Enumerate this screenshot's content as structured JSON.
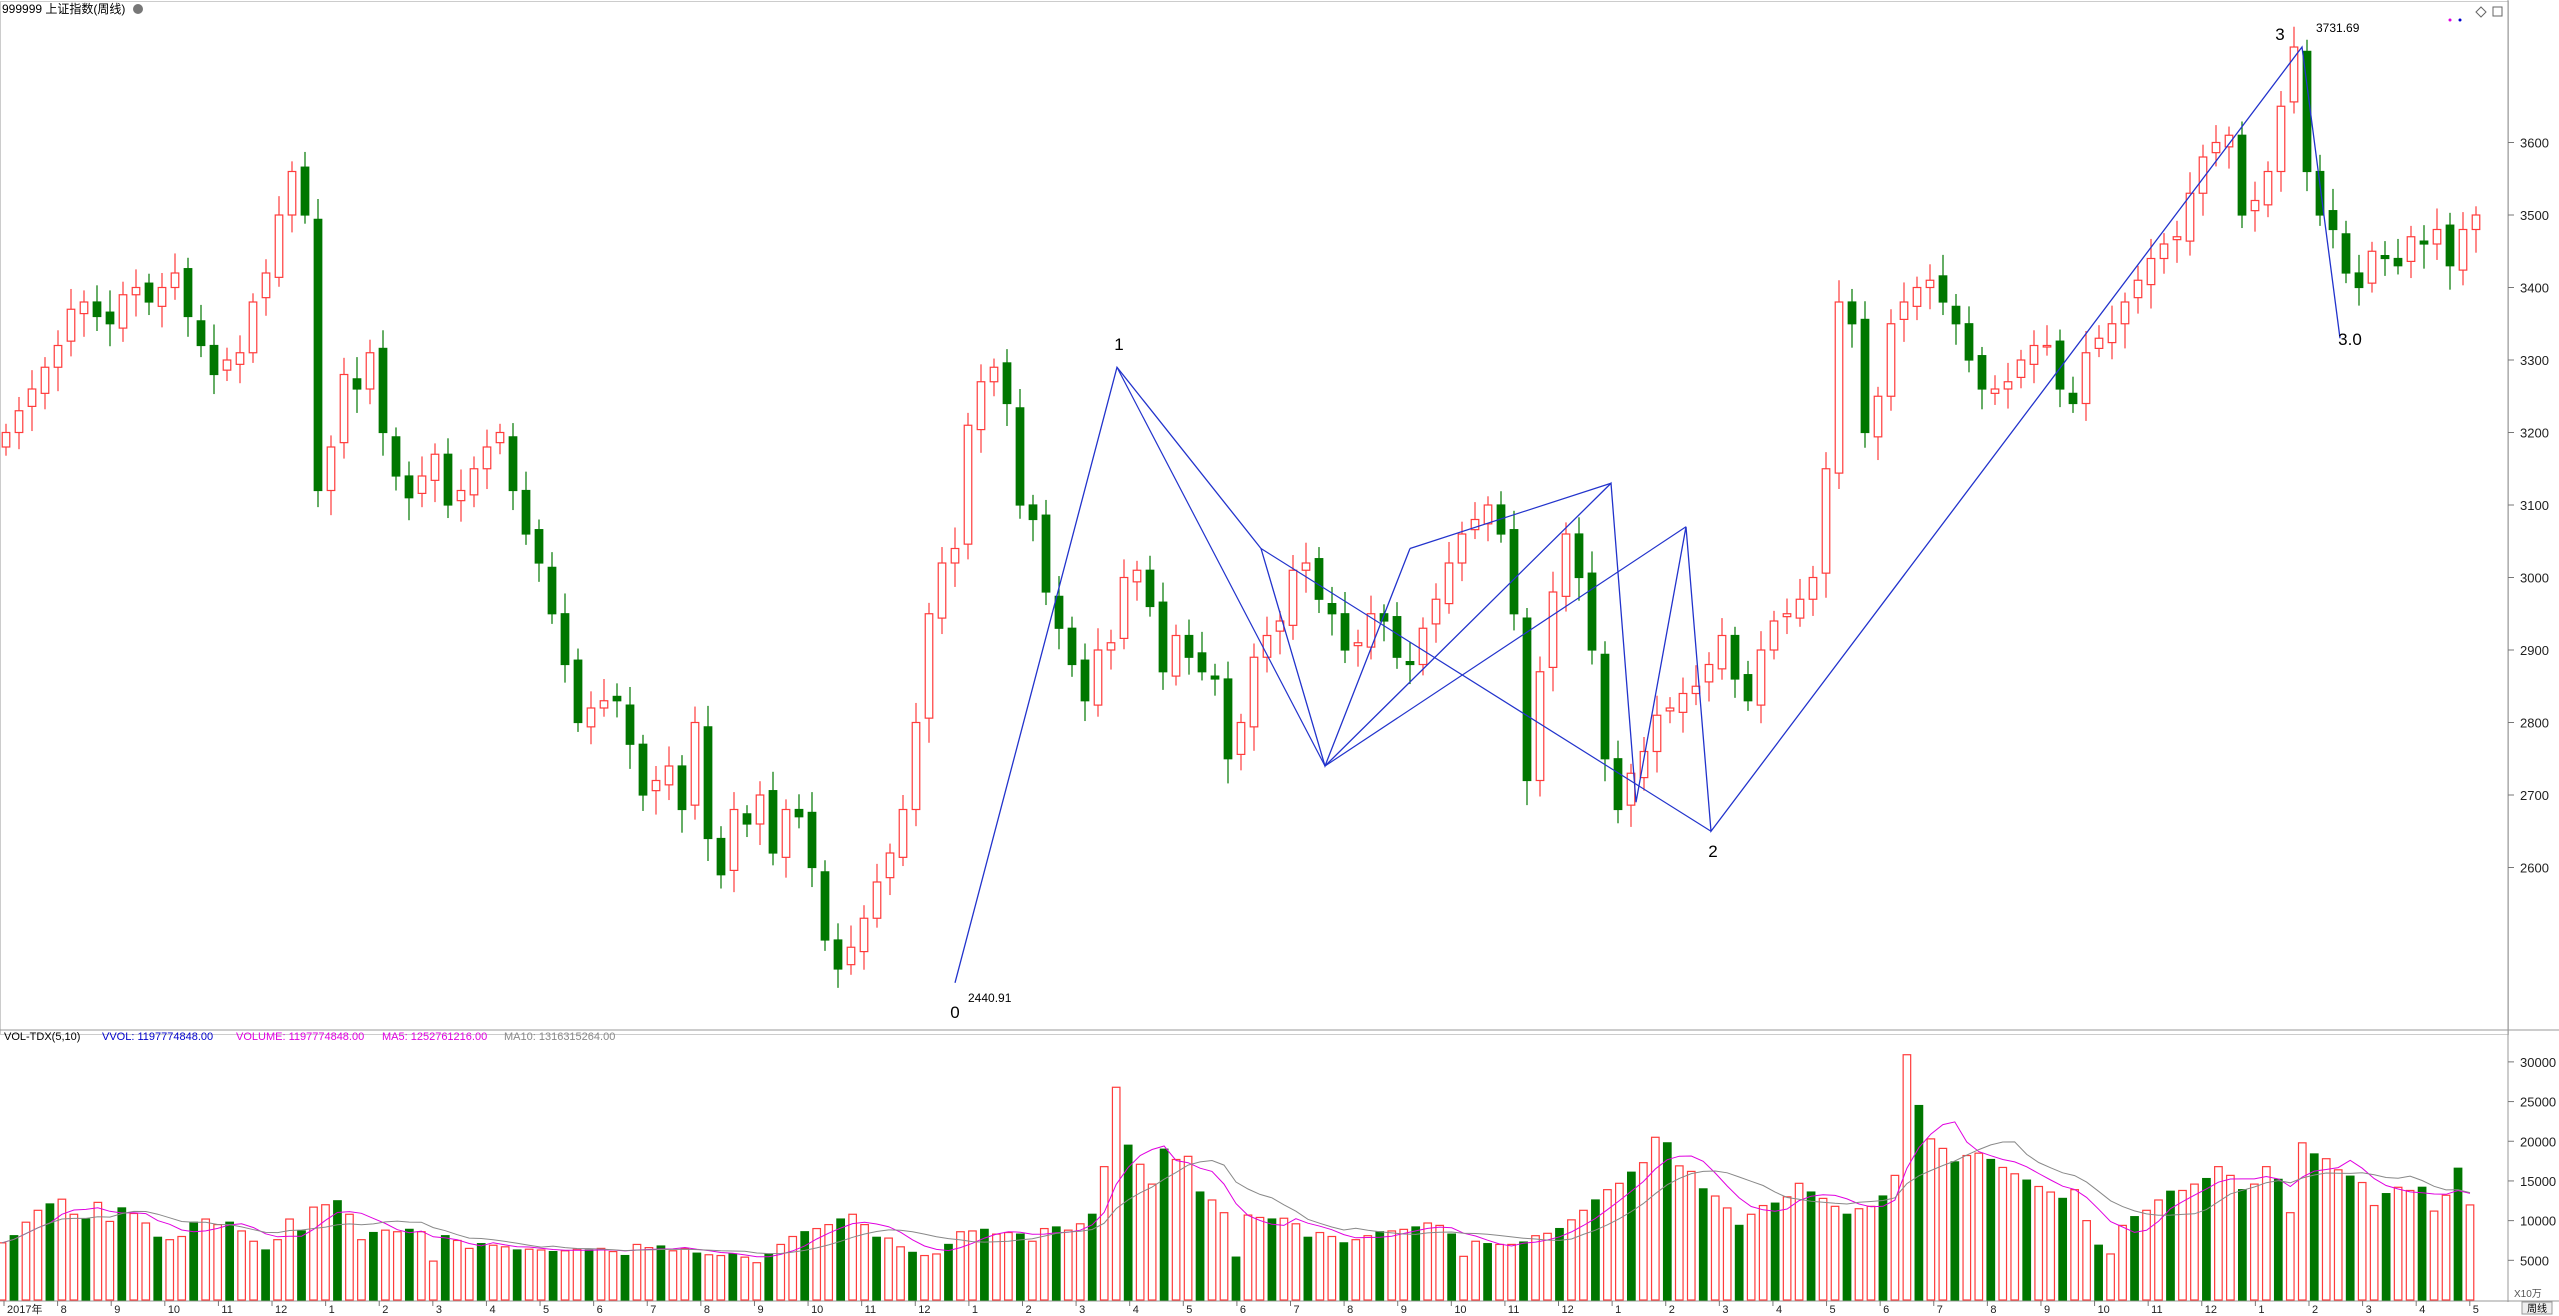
{
  "header": {
    "title": "999999 上证指数(周线)",
    "vol_indicator": "VOL-TDX(5,10)",
    "vvol_text": "VVOL: 1197774848.00",
    "volume_text": "VOLUME: 1197774848.00",
    "ma5_text": "MA5: 1252761216.00",
    "ma10_text": "MA10: 1316315264.00",
    "vol_unit": "X10万",
    "period_button": "周线"
  },
  "colors": {
    "up": "#ff3b3b",
    "down": "#007700",
    "wave": "#2233cc",
    "ma5": "#e000e0",
    "ma10": "#888888",
    "grid": "#bbbbbb",
    "text": "#222222"
  },
  "chart_data": [
    {
      "type": "candlestick",
      "title": "999999 上证指数(周线)",
      "ylim": [
        2380,
        3780
      ],
      "yticks": [
        2600,
        2700,
        2800,
        2900,
        3000,
        3100,
        3200,
        3300,
        3400,
        3500,
        3600
      ],
      "close_path": [
        3200,
        3230,
        3260,
        3290,
        3320,
        3370,
        3380,
        3360,
        3350,
        3390,
        3400,
        3380,
        3400,
        3420,
        3360,
        3320,
        3280,
        3300,
        3310,
        3380,
        3420,
        3500,
        3560,
        3500,
        3120,
        3180,
        3280,
        3260,
        3310,
        3200,
        3140,
        3110,
        3140,
        3170,
        3100,
        3120,
        3150,
        3180,
        3200,
        3120,
        3060,
        3020,
        2950,
        2880,
        2800,
        2820,
        2830,
        2830,
        2770,
        2700,
        2720,
        2740,
        2680,
        2800,
        2640,
        2590,
        2680,
        2660,
        2700,
        2620,
        2680,
        2670,
        2600,
        2500,
        2460,
        2490,
        2530,
        2580,
        2620,
        2680,
        2800,
        2950,
        3020,
        3040,
        3210,
        3270,
        3290,
        3240,
        3100,
        3080,
        2980,
        2930,
        2880,
        2830,
        2900,
        2910,
        3000,
        3010,
        2960,
        2870,
        2920,
        2890,
        2870,
        2860,
        2750,
        2800,
        2890,
        2920,
        2940,
        3010,
        3020,
        2970,
        2950,
        2900,
        2910,
        2950,
        2940,
        2890,
        2880,
        2930,
        2970,
        3020,
        3060,
        3080,
        3100,
        3060,
        2950,
        2720,
        2870,
        2980,
        3060,
        3000,
        2900,
        2750,
        2680,
        2730,
        2760,
        2810,
        2820,
        2840,
        2850,
        2880,
        2920,
        2860,
        2830,
        2900,
        2940,
        2950,
        2970,
        3000,
        3150,
        3380,
        3350,
        3200,
        3250,
        3350,
        3380,
        3400,
        3410,
        3380,
        3350,
        3300,
        3260,
        3260,
        3270,
        3300,
        3320,
        3320,
        3260,
        3240,
        3310,
        3330,
        3350,
        3380,
        3410,
        3440,
        3460,
        3470,
        3530,
        3580,
        3600,
        3610,
        3500,
        3520,
        3560,
        3650,
        3731.69,
        3560,
        3500,
        3480,
        3420,
        3400,
        3450,
        3440,
        3430,
        3470,
        3460,
        3480,
        3430,
        3480,
        3500
      ],
      "annotations": [
        {
          "label": "0",
          "value_label": "2440.91"
        },
        {
          "label": "1"
        },
        {
          "label": "2"
        },
        {
          "label": "3",
          "value_label": "3731.69"
        },
        {
          "label": "3.0"
        }
      ],
      "wave_path": [
        [
          0,
          2440.91
        ],
        [
          1,
          3290
        ],
        [
          2,
          3040
        ],
        [
          3,
          2740
        ],
        [
          4,
          3040
        ],
        [
          5,
          2740
        ],
        [
          6,
          3130
        ],
        [
          7,
          2690
        ],
        [
          8,
          3070
        ],
        [
          9,
          2650
        ],
        [
          10,
          3731.69
        ],
        [
          11,
          3330
        ]
      ],
      "x_month_labels": [
        "2017年",
        "8",
        "9",
        "10",
        "11",
        "12",
        "1",
        "2",
        "3",
        "4",
        "5",
        "6",
        "7",
        "8",
        "9",
        "10",
        "11",
        "12",
        "1",
        "2",
        "3",
        "4",
        "5",
        "6",
        "7",
        "8",
        "9",
        "10",
        "11",
        "12",
        "1",
        "2",
        "3",
        "4",
        "5",
        "6",
        "7",
        "8",
        "9",
        "10",
        "11",
        "12",
        "1",
        "2",
        "3",
        "4",
        "5"
      ]
    },
    {
      "type": "bar",
      "title": "VOL-TDX(5,10)",
      "unit": "X10万",
      "ylim": [
        0,
        32000
      ],
      "yticks": [
        5000,
        10000,
        15000,
        20000,
        25000,
        30000
      ],
      "series": [
        {
          "name": "VOLUME",
          "values": [
            7200,
            8100,
            9800,
            11300,
            12100,
            12700,
            10800,
            10200,
            12300,
            9900,
            11600,
            10900,
            9700,
            7900,
            7600,
            8000,
            9800,
            10200,
            9500,
            9800,
            8700,
            7400,
            6300,
            7600,
            10200,
            8700,
            11700,
            12000,
            12500,
            10800,
            7600,
            8500,
            8800,
            8600,
            8900,
            8600,
            4900,
            8100,
            7500,
            6500,
            7100,
            6900,
            6700,
            6300,
            6400,
            6300,
            6100,
            6200,
            6400,
            6300,
            6500,
            6100,
            5600,
            7000,
            6600,
            6800,
            6200,
            6500,
            5900,
            5700,
            5600,
            5800,
            5400,
            4700,
            5800,
            7000,
            8000,
            8600,
            9000,
            9500,
            10200,
            10800,
            9500,
            7900,
            7800,
            6700,
            6000,
            5600,
            5800,
            7000,
            8600,
            8700,
            8900,
            8300,
            8500,
            8300,
            7400,
            9000,
            9200,
            8800,
            9600,
            10800,
            16800,
            26800,
            19500,
            17100,
            14600,
            19000,
            17700,
            18100,
            13600,
            12600,
            11000,
            5400,
            10700,
            10400,
            10200,
            10300,
            9600,
            7900,
            8500,
            8000,
            7200,
            7600,
            8100,
            8600,
            8700,
            8900,
            9200,
            9700,
            9400,
            8300,
            5500,
            7400,
            7100,
            7000,
            7000,
            7300,
            8100,
            8400,
            9000,
            10100,
            11300,
            12600,
            13900,
            14700,
            16100,
            17300,
            20500,
            19800,
            16900,
            16200,
            14000,
            13100,
            11600,
            9400,
            10800,
            11900,
            12200,
            13000,
            14700,
            13600,
            12800,
            11800,
            10800,
            11500,
            11800,
            13100,
            15700,
            30900,
            24500,
            20300,
            19100,
            17400,
            18200,
            18500,
            17700,
            16700,
            15900,
            15100,
            14300,
            13600,
            12800,
            13900,
            10000,
            6900,
            5800,
            9400,
            10500,
            11300,
            12600,
            13700,
            13800,
            14600,
            15300,
            16800,
            15700,
            13900,
            14600,
            16800,
            15200,
            11000,
            19800,
            18400,
            17800,
            16400,
            15600,
            14800,
            11900,
            13400,
            14200,
            13800,
            14200,
            11200,
            13200,
            16600,
            11977
          ]
        },
        {
          "name": "MA5"
        },
        {
          "name": "MA10"
        }
      ]
    }
  ]
}
